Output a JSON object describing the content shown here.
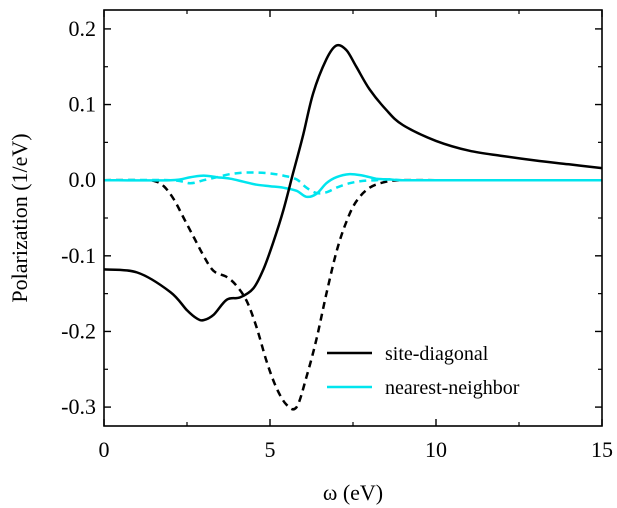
{
  "chart_data": {
    "type": "line",
    "xlabel": "ω (eV)",
    "ylabel": "Polarization (1/eV)",
    "xlim": [
      0,
      15
    ],
    "ylim": [
      -0.325,
      0.225
    ],
    "x_ticks": [
      0,
      5,
      10,
      15
    ],
    "x_tick_labels": [
      "0",
      "5",
      "10",
      "15"
    ],
    "y_ticks": [
      0.2,
      0.1,
      0.0,
      -0.1,
      -0.2,
      -0.3
    ],
    "y_tick_labels": [
      "0.2",
      "0.1",
      "0.0",
      "-0.1",
      "-0.2",
      "-0.3"
    ],
    "grid": false,
    "legend_position": "bottom-right",
    "legend": [
      {
        "label": "site-diagonal",
        "color": "#000000"
      },
      {
        "label": "nearest-neighbor",
        "color": "#00e5ee"
      }
    ],
    "series": [
      {
        "name": "site-diagonal",
        "style": "solid",
        "color": "#000000",
        "x": [
          0,
          1,
          2,
          2.5,
          2.8,
          3.0,
          3.3,
          3.7,
          4.1,
          4.5,
          4.8,
          5.1,
          5.4,
          5.7,
          6.0,
          6.3,
          6.7,
          7.0,
          7.3,
          7.6,
          8.0,
          8.5,
          9.0,
          10,
          11,
          12,
          13,
          14,
          15
        ],
        "y": [
          -0.118,
          -0.122,
          -0.148,
          -0.172,
          -0.183,
          -0.185,
          -0.178,
          -0.158,
          -0.155,
          -0.143,
          -0.118,
          -0.082,
          -0.04,
          0.01,
          0.06,
          0.115,
          0.16,
          0.178,
          0.172,
          0.15,
          0.12,
          0.093,
          0.073,
          0.052,
          0.039,
          0.032,
          0.026,
          0.021,
          0.016
        ]
      },
      {
        "name": "",
        "style": "dashed",
        "color": "#000000",
        "x": [
          0,
          1.0,
          1.5,
          1.8,
          2.1,
          2.4,
          2.7,
          3.0,
          3.3,
          3.7,
          4.0,
          4.3,
          4.6,
          4.9,
          5.2,
          5.5,
          5.8,
          6.1,
          6.4,
          6.7,
          7.0,
          7.3,
          7.6,
          8.0,
          8.5,
          9.0,
          10,
          12,
          15
        ],
        "y": [
          0,
          0,
          -0.001,
          -0.008,
          -0.025,
          -0.05,
          -0.075,
          -0.1,
          -0.12,
          -0.128,
          -0.14,
          -0.16,
          -0.195,
          -0.24,
          -0.275,
          -0.297,
          -0.3,
          -0.26,
          -0.21,
          -0.15,
          -0.095,
          -0.055,
          -0.028,
          -0.01,
          -0.002,
          0,
          0,
          0,
          0
        ]
      },
      {
        "name": "nearest-neighbor",
        "style": "solid",
        "color": "#00e5ee",
        "x": [
          0,
          2.0,
          2.6,
          3.0,
          3.4,
          3.8,
          4.2,
          4.6,
          5.0,
          5.4,
          5.8,
          6.1,
          6.4,
          6.7,
          7.0,
          7.4,
          7.8,
          8.2,
          8.6,
          9.0,
          10,
          12,
          15
        ],
        "y": [
          0,
          0,
          0.004,
          0.006,
          0.004,
          0.002,
          -0.002,
          -0.006,
          -0.008,
          -0.01,
          -0.014,
          -0.022,
          -0.018,
          -0.004,
          0.004,
          0.008,
          0.006,
          0.002,
          0.001,
          0,
          0,
          0,
          0
        ]
      },
      {
        "name": "",
        "style": "dashed",
        "color": "#00e5ee",
        "x": [
          0,
          2.0,
          2.6,
          3.0,
          3.4,
          3.8,
          4.2,
          4.6,
          5.0,
          5.4,
          5.8,
          6.1,
          6.4,
          6.7,
          7.0,
          7.4,
          7.8,
          8.2,
          8.6,
          9.0,
          10,
          12,
          15
        ],
        "y": [
          0,
          0,
          -0.004,
          0.0,
          0.004,
          0.008,
          0.01,
          0.01,
          0.009,
          0.006,
          0.001,
          -0.01,
          -0.017,
          -0.016,
          -0.01,
          -0.004,
          -0.001,
          0.0,
          0.001,
          0,
          0,
          0,
          0
        ]
      }
    ]
  }
}
